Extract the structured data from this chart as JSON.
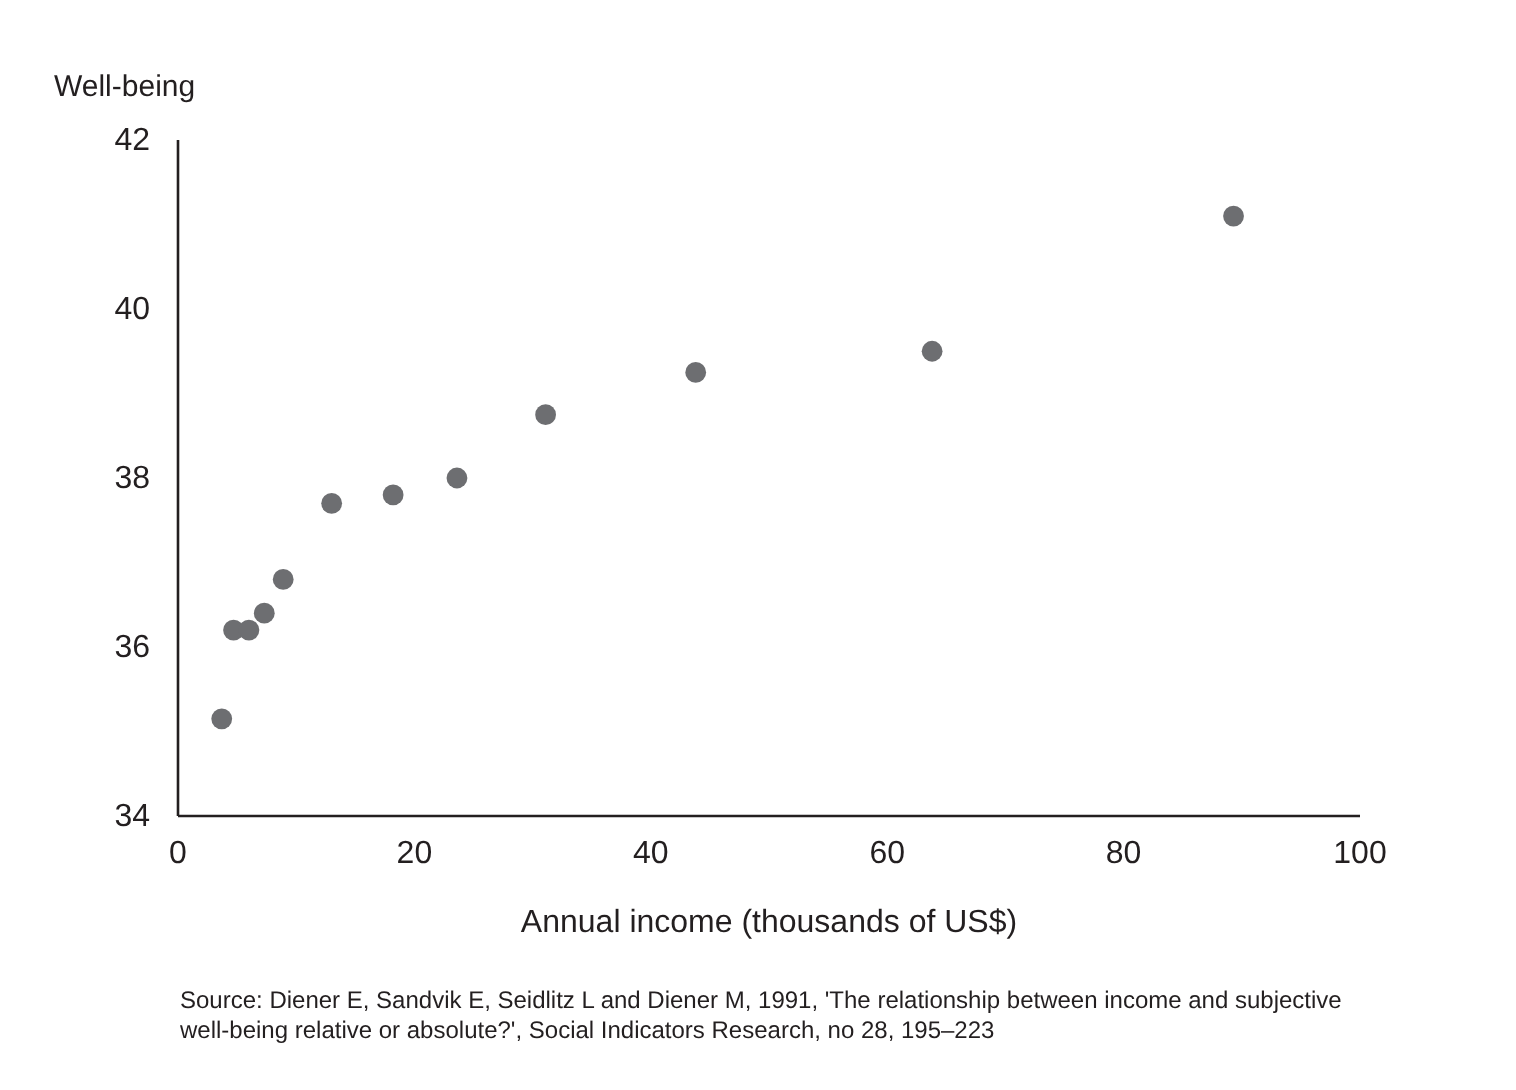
{
  "chart_data": {
    "type": "scatter",
    "xlabel": "Annual income (thousands of US$)",
    "ylabel": "Well-being",
    "x": [
      3.7,
      4.7,
      6.0,
      7.3,
      8.9,
      13.0,
      18.2,
      23.6,
      31.1,
      43.8,
      63.8,
      89.3
    ],
    "values": [
      35.15,
      36.2,
      36.2,
      36.4,
      36.8,
      37.7,
      37.8,
      38.0,
      38.75,
      39.25,
      39.5,
      41.1
    ],
    "color": "#6d6e71",
    "marker": "circle",
    "xlim": [
      0,
      100
    ],
    "xticks": [
      0,
      20,
      40,
      60,
      80,
      100
    ],
    "ylim": [
      34,
      42
    ],
    "yticks": [
      34,
      36,
      38,
      40,
      42
    ],
    "annotations": [
      "Source: Diener E, Sandvik E, Seidlitz L and Diener M, 1991, 'The relationship between income and subjective well-being relative or absolute?', Social Indicators Research, no 28, 195–223"
    ]
  }
}
